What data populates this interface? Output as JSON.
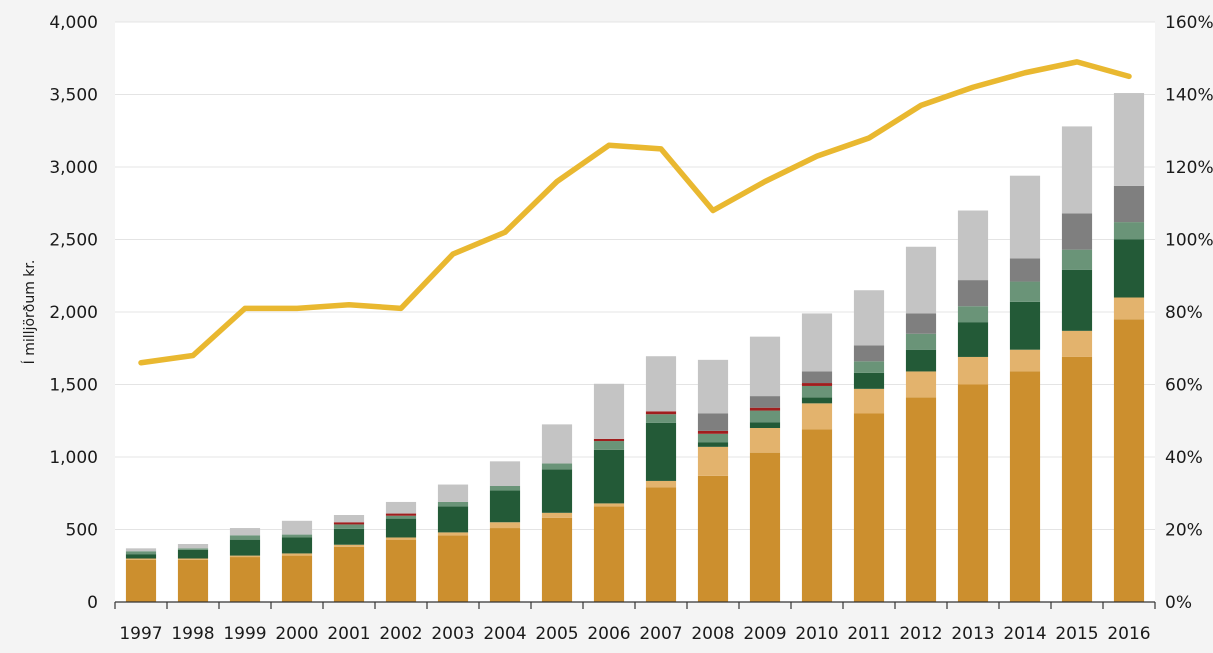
{
  "chart_data": {
    "type": "bar",
    "stacked": true,
    "title": "",
    "ylabel": "Í milljörðum kr.",
    "ylabel_right": "",
    "ylim": [
      0,
      4000
    ],
    "ylim_right": [
      0,
      160
    ],
    "yticks_left": [
      "0",
      "500",
      "1,000",
      "1,500",
      "2,000",
      "2,500",
      "3,000",
      "3,500",
      "4,000"
    ],
    "yticks_right": [
      "0%",
      "20%",
      "40%",
      "60%",
      "80%",
      "100%",
      "120%",
      "140%",
      "160%"
    ],
    "grid": true,
    "legend": "none",
    "categories": [
      "1997",
      "1998",
      "1999",
      "2000",
      "2001",
      "2002",
      "2003",
      "2004",
      "2005",
      "2006",
      "2007",
      "2008",
      "2009",
      "2010",
      "2011",
      "2012",
      "2013",
      "2014",
      "2015",
      "2016"
    ],
    "series": [
      {
        "color": "#cc8f2e",
        "values": [
          290,
          290,
          310,
          320,
          380,
          430,
          460,
          510,
          580,
          660,
          790,
          870,
          1030,
          1190,
          1300,
          1410,
          1500,
          1590,
          1690,
          1950
        ]
      },
      {
        "color": "#e3b36d",
        "values": [
          10,
          10,
          10,
          15,
          15,
          15,
          20,
          40,
          35,
          20,
          45,
          200,
          170,
          180,
          170,
          180,
          190,
          150,
          180,
          150
        ]
      },
      {
        "color": "#235a37",
        "values": [
          30,
          60,
          110,
          110,
          110,
          130,
          180,
          220,
          300,
          370,
          400,
          30,
          40,
          40,
          110,
          150,
          240,
          330,
          420,
          400
        ]
      },
      {
        "color": "#6a9478",
        "values": [
          20,
          10,
          30,
          20,
          30,
          20,
          30,
          30,
          40,
          60,
          60,
          60,
          80,
          80,
          80,
          110,
          110,
          140,
          140,
          120
        ]
      },
      {
        "color": "#a01e1e",
        "values": [
          0,
          0,
          0,
          0,
          15,
          15,
          0,
          0,
          0,
          15,
          20,
          20,
          20,
          20,
          0,
          0,
          0,
          0,
          0,
          0
        ]
      },
      {
        "color": "#7f7f7f",
        "values": [
          0,
          0,
          0,
          0,
          0,
          0,
          0,
          0,
          0,
          0,
          0,
          120,
          80,
          80,
          110,
          140,
          180,
          160,
          250,
          250
        ]
      },
      {
        "color": "#c4c4c4",
        "values": [
          20,
          30,
          50,
          95,
          50,
          80,
          120,
          170,
          270,
          380,
          380,
          370,
          410,
          400,
          380,
          460,
          480,
          570,
          600,
          640
        ]
      }
    ],
    "line_series": {
      "axis": "right",
      "color": "#e9b830",
      "values": [
        66,
        68,
        81,
        81,
        82,
        81,
        96,
        102,
        116,
        126,
        125,
        108,
        116,
        123,
        128,
        137,
        142,
        146,
        149,
        145
      ]
    }
  }
}
